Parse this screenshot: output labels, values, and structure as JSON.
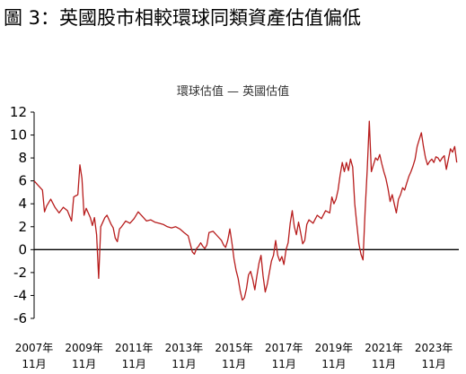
{
  "figure": {
    "title": "圖 3：英國股市相較環球同類資產估值偏低"
  },
  "colors": {
    "series": "#b71c1c",
    "axis": "#000000",
    "zero_line": "#000000"
  },
  "chart_data": {
    "type": "line",
    "title": "",
    "legend_text": "環球估值 — 英國估值",
    "xlabel": "",
    "ylabel": "",
    "ylim": [
      -6,
      12
    ],
    "yticks": [
      12,
      10,
      8,
      6,
      4,
      2,
      0,
      -2,
      -4,
      -6
    ],
    "xlim": [
      "2007-11",
      "2024-11"
    ],
    "x_ticks": [
      {
        "date": "2007-11",
        "year": "2007年",
        "month": "11月"
      },
      {
        "date": "2009-11",
        "year": "2009年",
        "month": "11月"
      },
      {
        "date": "2011-11",
        "year": "2011年",
        "month": "11月"
      },
      {
        "date": "2013-11",
        "year": "2013年",
        "month": "11月"
      },
      {
        "date": "2015-11",
        "year": "2015年",
        "month": "11月"
      },
      {
        "date": "2017-11",
        "year": "2017年",
        "month": "11月"
      },
      {
        "date": "2019-11",
        "year": "2019年",
        "month": "11月"
      },
      {
        "date": "2021-11",
        "year": "2021年",
        "month": "11月"
      },
      {
        "date": "2023-11",
        "year": "2023年",
        "month": "11月"
      }
    ],
    "grid": false,
    "legend_position": "top-center",
    "series": [
      {
        "name": "環球估值 — 英國估值",
        "points": [
          [
            "2007-11",
            6.0
          ],
          [
            "2008-01",
            5.6
          ],
          [
            "2008-03",
            5.2
          ],
          [
            "2008-04",
            3.3
          ],
          [
            "2008-05",
            3.8
          ],
          [
            "2008-07",
            4.4
          ],
          [
            "2008-09",
            3.7
          ],
          [
            "2008-11",
            3.2
          ],
          [
            "2009-01",
            3.7
          ],
          [
            "2009-03",
            3.4
          ],
          [
            "2009-05",
            2.5
          ],
          [
            "2009-06",
            4.6
          ],
          [
            "2009-08",
            4.8
          ],
          [
            "2009-09",
            7.4
          ],
          [
            "2009-10",
            6.2
          ],
          [
            "2009-11",
            3.0
          ],
          [
            "2009-12",
            3.6
          ],
          [
            "2010-01",
            3.2
          ],
          [
            "2010-02",
            2.8
          ],
          [
            "2010-03",
            2.1
          ],
          [
            "2010-04",
            2.8
          ],
          [
            "2010-05",
            1.3
          ],
          [
            "2010-06",
            -2.5
          ],
          [
            "2010-07",
            2.0
          ],
          [
            "2010-08",
            2.4
          ],
          [
            "2010-09",
            2.8
          ],
          [
            "2010-10",
            3.0
          ],
          [
            "2010-11",
            2.6
          ],
          [
            "2010-12",
            2.2
          ],
          [
            "2011-01",
            1.9
          ],
          [
            "2011-02",
            1.0
          ],
          [
            "2011-03",
            0.7
          ],
          [
            "2011-04",
            1.8
          ],
          [
            "2011-05",
            2.0
          ],
          [
            "2011-07",
            2.5
          ],
          [
            "2011-09",
            2.3
          ],
          [
            "2011-11",
            2.7
          ],
          [
            "2012-01",
            3.3
          ],
          [
            "2012-03",
            2.9
          ],
          [
            "2012-05",
            2.5
          ],
          [
            "2012-07",
            2.6
          ],
          [
            "2012-09",
            2.4
          ],
          [
            "2012-11",
            2.3
          ],
          [
            "2013-01",
            2.2
          ],
          [
            "2013-03",
            2.0
          ],
          [
            "2013-05",
            1.9
          ],
          [
            "2013-07",
            2.0
          ],
          [
            "2013-09",
            1.8
          ],
          [
            "2013-11",
            1.5
          ],
          [
            "2014-01",
            1.2
          ],
          [
            "2014-02",
            0.5
          ],
          [
            "2014-03",
            -0.2
          ],
          [
            "2014-04",
            -0.4
          ],
          [
            "2014-05",
            0.1
          ],
          [
            "2014-06",
            0.3
          ],
          [
            "2014-07",
            0.6
          ],
          [
            "2014-08",
            0.3
          ],
          [
            "2014-09",
            0.1
          ],
          [
            "2014-10",
            0.4
          ],
          [
            "2014-11",
            1.5
          ],
          [
            "2015-01",
            1.6
          ],
          [
            "2015-03",
            1.2
          ],
          [
            "2015-05",
            0.8
          ],
          [
            "2015-06",
            0.4
          ],
          [
            "2015-07",
            0.2
          ],
          [
            "2015-08",
            0.8
          ],
          [
            "2015-09",
            1.8
          ],
          [
            "2015-10",
            0.6
          ],
          [
            "2015-11",
            -0.8
          ],
          [
            "2015-12",
            -1.8
          ],
          [
            "2016-01",
            -2.5
          ],
          [
            "2016-02",
            -3.6
          ],
          [
            "2016-03",
            -4.4
          ],
          [
            "2016-04",
            -4.2
          ],
          [
            "2016-05",
            -3.4
          ],
          [
            "2016-06",
            -2.2
          ],
          [
            "2016-07",
            -1.9
          ],
          [
            "2016-08",
            -2.6
          ],
          [
            "2016-09",
            -3.5
          ],
          [
            "2016-10",
            -2.3
          ],
          [
            "2016-11",
            -1.2
          ],
          [
            "2016-12",
            -0.5
          ],
          [
            "2017-01",
            -2.3
          ],
          [
            "2017-02",
            -3.7
          ],
          [
            "2017-03",
            -3.0
          ],
          [
            "2017-04",
            -2.0
          ],
          [
            "2017-05",
            -1.0
          ],
          [
            "2017-06",
            -0.5
          ],
          [
            "2017-07",
            0.8
          ],
          [
            "2017-08",
            -0.5
          ],
          [
            "2017-09",
            -1.0
          ],
          [
            "2017-10",
            -0.6
          ],
          [
            "2017-11",
            -1.3
          ],
          [
            "2017-12",
            0.0
          ],
          [
            "2018-01",
            0.6
          ],
          [
            "2018-02",
            2.3
          ],
          [
            "2018-03",
            3.4
          ],
          [
            "2018-04",
            2.0
          ],
          [
            "2018-05",
            1.3
          ],
          [
            "2018-06",
            2.4
          ],
          [
            "2018-07",
            1.5
          ],
          [
            "2018-08",
            0.5
          ],
          [
            "2018-09",
            0.8
          ],
          [
            "2018-10",
            2.2
          ],
          [
            "2018-11",
            2.6
          ],
          [
            "2019-01",
            2.3
          ],
          [
            "2019-03",
            3.0
          ],
          [
            "2019-05",
            2.7
          ],
          [
            "2019-07",
            3.4
          ],
          [
            "2019-09",
            3.2
          ],
          [
            "2019-10",
            4.6
          ],
          [
            "2019-11",
            4.0
          ],
          [
            "2019-12",
            4.4
          ],
          [
            "2020-01",
            5.2
          ],
          [
            "2020-02",
            6.5
          ],
          [
            "2020-03",
            7.6
          ],
          [
            "2020-04",
            6.8
          ],
          [
            "2020-05",
            7.6
          ],
          [
            "2020-06",
            6.9
          ],
          [
            "2020-07",
            7.9
          ],
          [
            "2020-08",
            7.2
          ],
          [
            "2020-09",
            4.0
          ],
          [
            "2020-10",
            2.2
          ],
          [
            "2020-11",
            0.5
          ],
          [
            "2020-12",
            -0.4
          ],
          [
            "2021-01",
            -0.9
          ],
          [
            "2021-02",
            3.5
          ],
          [
            "2021-03",
            7.0
          ],
          [
            "2021-04",
            11.2
          ],
          [
            "2021-05",
            6.8
          ],
          [
            "2021-06",
            7.4
          ],
          [
            "2021-07",
            8.0
          ],
          [
            "2021-08",
            7.8
          ],
          [
            "2021-09",
            8.3
          ],
          [
            "2021-10",
            7.5
          ],
          [
            "2021-11",
            6.8
          ],
          [
            "2021-12",
            6.2
          ],
          [
            "2022-01",
            5.3
          ],
          [
            "2022-02",
            4.2
          ],
          [
            "2022-03",
            4.8
          ],
          [
            "2022-04",
            4.0
          ],
          [
            "2022-05",
            3.2
          ],
          [
            "2022-06",
            4.4
          ],
          [
            "2022-07",
            4.8
          ],
          [
            "2022-08",
            5.4
          ],
          [
            "2022-09",
            5.2
          ],
          [
            "2022-10",
            5.8
          ],
          [
            "2022-11",
            6.4
          ],
          [
            "2022-12",
            6.8
          ],
          [
            "2023-01",
            7.3
          ],
          [
            "2023-02",
            7.9
          ],
          [
            "2023-03",
            9.0
          ],
          [
            "2023-04",
            9.6
          ],
          [
            "2023-05",
            10.2
          ],
          [
            "2023-06",
            9.0
          ],
          [
            "2023-07",
            8.0
          ],
          [
            "2023-08",
            7.4
          ],
          [
            "2023-09",
            7.7
          ],
          [
            "2023-10",
            7.9
          ],
          [
            "2023-11",
            7.6
          ],
          [
            "2023-12",
            8.1
          ],
          [
            "2024-01",
            8.0
          ],
          [
            "2024-02",
            7.7
          ],
          [
            "2024-03",
            8.0
          ],
          [
            "2024-04",
            8.2
          ],
          [
            "2024-05",
            7.0
          ],
          [
            "2024-06",
            7.9
          ],
          [
            "2024-07",
            8.8
          ],
          [
            "2024-08",
            8.5
          ],
          [
            "2024-09",
            9.0
          ],
          [
            "2024-10",
            7.6
          ]
        ]
      }
    ]
  }
}
